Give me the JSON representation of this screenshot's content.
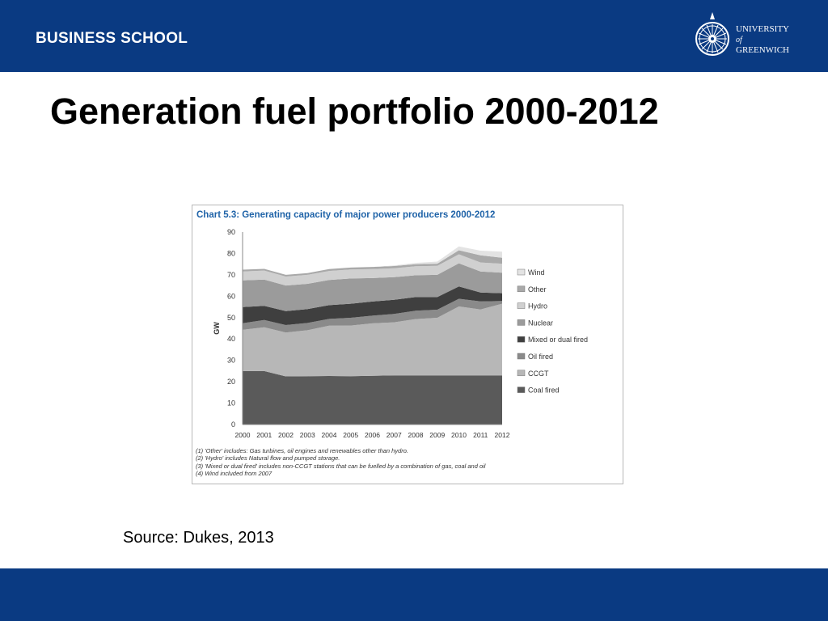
{
  "header": {
    "school_label": "BUSINESS SCHOOL",
    "logo_line1": "UNIVERSITY",
    "logo_line2": "of",
    "logo_line3": "GREENWICH",
    "background_color": "#0a3a82"
  },
  "slide": {
    "title": "Generation fuel portfolio 2000-2012",
    "source": "Source: Dukes, 2013"
  },
  "chart_data": {
    "type": "area",
    "stacked": true,
    "title": "Chart 5.3: Generating capacity of major power producers 2000-2012",
    "ylabel": "GW",
    "xlabel": "",
    "ylim": [
      0,
      90
    ],
    "yticks": [
      0,
      10,
      20,
      30,
      40,
      50,
      60,
      70,
      80,
      90
    ],
    "grid": false,
    "legend_position": "right",
    "x": [
      "2000",
      "2001",
      "2002",
      "2003",
      "2004",
      "2005",
      "2006",
      "2007",
      "2008",
      "2009",
      "2010",
      "2011",
      "2012"
    ],
    "series": [
      {
        "name": "Coal fired",
        "color": "#5a5a5a",
        "values": [
          25,
          25,
          22.5,
          22.6,
          22.7,
          22.6,
          22.8,
          23,
          23,
          23,
          23,
          23,
          23
        ]
      },
      {
        "name": "CCGT",
        "color": "#b7b7b7",
        "values": [
          19.3,
          20.5,
          20.5,
          21.5,
          23.5,
          23.7,
          24.5,
          24.8,
          26.3,
          26.9,
          32.2,
          30.8,
          33.5
        ]
      },
      {
        "name": "Oil fired",
        "color": "#8a8a8a",
        "values": [
          3.1,
          3.4,
          3.5,
          3.4,
          3.2,
          3.6,
          3.6,
          3.9,
          3.9,
          3.8,
          3.6,
          3.8,
          1.3
        ]
      },
      {
        "name": "Mixed or dual fired",
        "color": "#3f3f3f",
        "values": [
          7.5,
          6.6,
          6.5,
          6.5,
          6.4,
          6.6,
          6.6,
          6.6,
          6.4,
          5.9,
          5.8,
          4.1,
          3.6
        ]
      },
      {
        "name": "Nuclear",
        "color": "#9b9b9b",
        "values": [
          12.5,
          12.3,
          12,
          11.8,
          11.8,
          11.8,
          11,
          10.6,
          10.2,
          10.4,
          10.8,
          9.9,
          9.6
        ]
      },
      {
        "name": "Hydro",
        "color": "#d0d0d0",
        "values": [
          4.2,
          4.2,
          4.2,
          4.2,
          4.2,
          4.2,
          4.2,
          4.2,
          4.2,
          4.2,
          4.2,
          4.2,
          4.2
        ]
      },
      {
        "name": "Other",
        "color": "#a9a9a9",
        "values": [
          0.8,
          0.8,
          0.8,
          0.8,
          0.9,
          0.9,
          1.0,
          1.0,
          1.0,
          1.0,
          1.9,
          3.3,
          2.8
        ]
      },
      {
        "name": "Wind",
        "color": "#e3e3e3",
        "values": [
          0,
          0,
          0,
          0,
          0,
          0,
          0,
          0.3,
          0.6,
          1.0,
          1.8,
          2.2,
          2.8
        ]
      }
    ],
    "notes": [
      "(1) 'Other' includes: Gas turbines, oil engines and renewables other than hydro.",
      "(2) 'Hydro' includes Natural flow and pumped storage.",
      "(3) 'Mixed or dual fired' includes non-CCGT stations that can be fuelled by a combination of gas, coal and oil",
      "(4) Wind included from 2007"
    ]
  }
}
